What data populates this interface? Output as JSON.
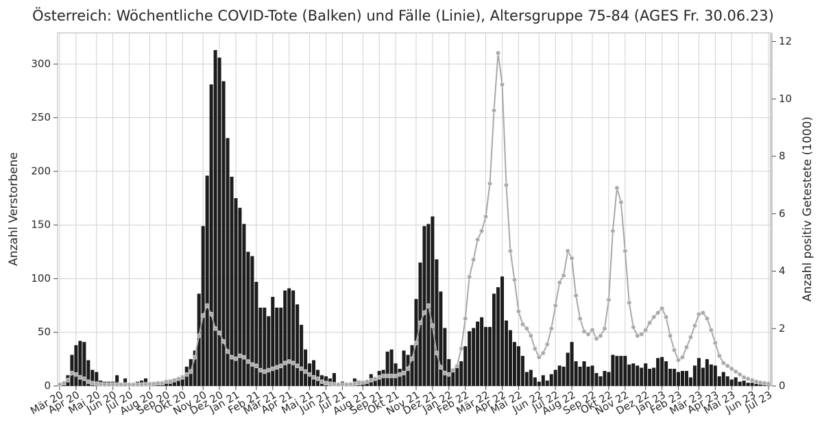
{
  "chart_data": {
    "type": "bar",
    "title": "Österreich: Wöchentliche COVID-Tote (Balken) und Fälle (Linie), Altersgruppe 75-84 (AGES Fr. 30.06.23)",
    "ylabel": "Anzahl Verstorbene",
    "y2label": "Anzahl positiv Getestete (1000)",
    "categories": [
      "Mär 20",
      null,
      null,
      null,
      "Apr 20",
      null,
      null,
      null,
      null,
      "Mai 20",
      null,
      null,
      null,
      "Jun 20",
      null,
      null,
      null,
      "Jul 20",
      null,
      null,
      null,
      null,
      "Aug 20",
      null,
      null,
      null,
      "Sep 20",
      null,
      null,
      null,
      "Okt 20",
      null,
      null,
      null,
      null,
      "Nov 20",
      null,
      null,
      null,
      "Dez 20",
      null,
      null,
      null,
      "Jan 21",
      null,
      null,
      null,
      null,
      "Feb 21",
      null,
      null,
      null,
      "Mär 21",
      null,
      null,
      null,
      "Apr 21",
      null,
      null,
      null,
      null,
      "Mai 21",
      null,
      null,
      null,
      "Jun 21",
      null,
      null,
      null,
      "Jul 21",
      null,
      null,
      null,
      null,
      "Aug 21",
      null,
      null,
      null,
      "Sep 21",
      null,
      null,
      null,
      "Okt 21",
      null,
      null,
      null,
      null,
      "Nov 21",
      null,
      null,
      null,
      "Dez 21",
      null,
      null,
      null,
      "Jan 22",
      null,
      null,
      null,
      "Feb 22",
      null,
      null,
      null,
      null,
      "Mär 22",
      null,
      null,
      null,
      "Apr 22",
      null,
      null,
      null,
      "Mai 22",
      null,
      null,
      null,
      null,
      "Jun 22",
      null,
      null,
      null,
      "Jul 22",
      null,
      null,
      null,
      "Aug 22",
      null,
      null,
      null,
      null,
      "Sep 22",
      null,
      null,
      null,
      "Okt 22",
      null,
      null,
      null,
      "Nov 22",
      null,
      null,
      null,
      null,
      "Dez 22",
      null,
      null,
      null,
      "Jan 23",
      null,
      null,
      null,
      "Feb 23",
      null,
      null,
      null,
      null,
      "Mär 23",
      null,
      null,
      null,
      "Apr 23",
      null,
      null,
      null,
      "Mai 23",
      null,
      null,
      null,
      null,
      "Jun 23",
      null,
      null,
      null,
      "Jul 23"
    ],
    "series": [
      {
        "type": "bar",
        "color": "#1c1c1c",
        "values": [
          0,
          1,
          10,
          29,
          38,
          42,
          41,
          24,
          15,
          13,
          5,
          4,
          4,
          4,
          10,
          3,
          7,
          1,
          2,
          4,
          5,
          7,
          2,
          3,
          4,
          2,
          4,
          6,
          7,
          8,
          10,
          18,
          25,
          33,
          86,
          149,
          196,
          281,
          313,
          306,
          284,
          231,
          195,
          175,
          166,
          151,
          125,
          121,
          97,
          73,
          73,
          65,
          83,
          73,
          73,
          89,
          91,
          89,
          76,
          57,
          34,
          21,
          24,
          15,
          10,
          9,
          7,
          12,
          1,
          4,
          3,
          2,
          7,
          5,
          3,
          4,
          11,
          7,
          14,
          15,
          32,
          34,
          21,
          16,
          33,
          29,
          38,
          81,
          115,
          149,
          151,
          158,
          118,
          88,
          54,
          25,
          16,
          19,
          23,
          37,
          51,
          54,
          60,
          64,
          55,
          55,
          86,
          92,
          102,
          61,
          52,
          41,
          37,
          28,
          13,
          15,
          8,
          4,
          10,
          5,
          11,
          15,
          19,
          18,
          31,
          41,
          23,
          18,
          23,
          18,
          19,
          12,
          9,
          14,
          13,
          29,
          28,
          28,
          28,
          20,
          21,
          19,
          17,
          21,
          16,
          17,
          26,
          27,
          23,
          16,
          16,
          13,
          14,
          14,
          8,
          19,
          26,
          17,
          25,
          20,
          19,
          9,
          13,
          9,
          6,
          8,
          4,
          5,
          3,
          3,
          2,
          2,
          1,
          1
        ]
      },
      {
        "type": "line",
        "color": "#a8a8a8",
        "axis": "y2",
        "values": [
          0.05,
          0.1,
          0.2,
          0.45,
          0.4,
          0.3,
          0.25,
          0.15,
          0.1,
          0.08,
          0.06,
          0.05,
          0.05,
          0.05,
          0.05,
          0.05,
          0.05,
          0.05,
          0.05,
          0.05,
          0.05,
          0.06,
          0.07,
          0.08,
          0.1,
          0.1,
          0.15,
          0.15,
          0.2,
          0.25,
          0.3,
          0.4,
          0.5,
          1.0,
          1.75,
          2.45,
          2.8,
          2.5,
          2.0,
          1.85,
          1.55,
          1.2,
          1.0,
          0.95,
          1.05,
          1.0,
          0.85,
          0.75,
          0.7,
          0.55,
          0.5,
          0.55,
          0.6,
          0.65,
          0.7,
          0.8,
          0.85,
          0.8,
          0.7,
          0.6,
          0.5,
          0.4,
          0.3,
          0.25,
          0.15,
          0.1,
          0.08,
          0.06,
          0.05,
          0.05,
          0.05,
          0.06,
          0.08,
          0.1,
          0.12,
          0.15,
          0.2,
          0.25,
          0.3,
          0.35,
          0.35,
          0.35,
          0.35,
          0.4,
          0.45,
          0.6,
          0.95,
          1.5,
          2.2,
          2.55,
          2.8,
          2.1,
          1.15,
          0.65,
          0.45,
          0.4,
          0.55,
          0.7,
          1.3,
          2.35,
          3.8,
          4.4,
          5.1,
          5.4,
          5.9,
          7.05,
          9.6,
          11.6,
          10.5,
          7.0,
          4.7,
          3.7,
          2.6,
          2.15,
          2.0,
          1.75,
          1.3,
          1.0,
          1.15,
          1.45,
          2.0,
          2.8,
          3.6,
          3.85,
          4.7,
          4.45,
          3.15,
          2.35,
          1.9,
          1.8,
          1.95,
          1.65,
          1.75,
          2.0,
          3.0,
          5.4,
          6.9,
          6.4,
          4.7,
          2.9,
          2.05,
          1.75,
          1.8,
          1.95,
          2.2,
          2.4,
          2.55,
          2.7,
          2.4,
          1.75,
          1.25,
          0.9,
          1.0,
          1.35,
          1.7,
          2.1,
          2.5,
          2.55,
          2.35,
          1.95,
          1.5,
          1.05,
          0.8,
          0.7,
          0.6,
          0.5,
          0.4,
          0.3,
          0.25,
          0.2,
          0.15,
          0.12,
          0.1,
          0.08
        ]
      }
    ],
    "ylim": [
      0,
      329
    ],
    "yticks": [
      0,
      50,
      100,
      150,
      200,
      250,
      300
    ],
    "y2lim": [
      0,
      12.3
    ],
    "y2ticks": [
      0,
      2,
      4,
      6,
      8,
      10,
      12
    ],
    "grid": true
  }
}
